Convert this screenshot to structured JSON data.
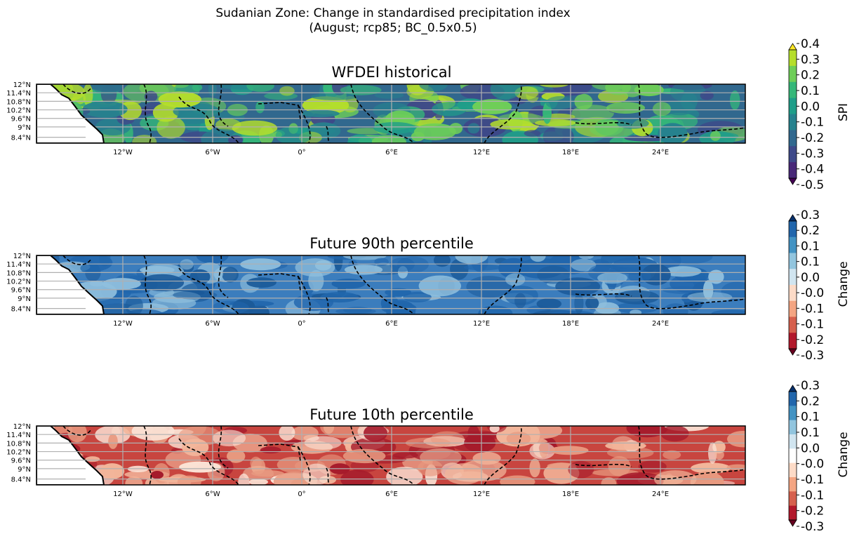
{
  "figure": {
    "title_line1": "Sudanian Zone: Change in standardised precipitation index",
    "title_line2": "(August; rcp85; BC_0.5x0.5)"
  },
  "lat_ticks": [
    "12°N",
    "11.4°N",
    "10.8°N",
    "10.2°N",
    "9.6°N",
    "9°N",
    "8.4°N"
  ],
  "lon_ticks": [
    "12°W",
    "6°W",
    "0°",
    "6°E",
    "12°E",
    "18°E",
    "24°E"
  ],
  "panels": [
    {
      "title": "WFDEI historical",
      "colorbar": {
        "label": "SPI",
        "ticks": [
          "0.4",
          "0.3",
          "0.2",
          "0.1",
          "0.0",
          "-0.1",
          "-0.2",
          "-0.3",
          "-0.4",
          "-0.5"
        ],
        "colors": [
          "#fde725",
          "#b5de2b",
          "#6ece58",
          "#35b779",
          "#1f9e89",
          "#26828e",
          "#31688e",
          "#3e4989",
          "#482878",
          "#440154"
        ]
      },
      "field_colors": [
        "#31688e",
        "#26828e",
        "#1f9e89",
        "#35b779",
        "#3e4989",
        "#6ece58",
        "#b5de2b"
      ]
    },
    {
      "title": "Future 90th percentile",
      "colorbar": {
        "label": "Change",
        "ticks": [
          "0.3",
          "0.2",
          "0.1",
          "0.1",
          "0.0",
          "-0.0",
          "-0.1",
          "-0.1",
          "-0.2",
          "-0.3"
        ],
        "colors": [
          "#08306b",
          "#2166ac",
          "#4393c3",
          "#92c5de",
          "#d1e5f0",
          "#fddbc7",
          "#f4a582",
          "#d6604d",
          "#b2182b",
          "#67001f"
        ]
      },
      "field_colors": [
        "#3b7dbd",
        "#1b5a99",
        "#8fbfdd",
        "#2166ac"
      ]
    },
    {
      "title": "Future 10th percentile",
      "colorbar": {
        "label": "Change",
        "ticks": [
          "0.3",
          "0.2",
          "0.1",
          "0.1",
          "0.0",
          "-0.0",
          "-0.1",
          "-0.1",
          "-0.2",
          "-0.3"
        ],
        "colors": [
          "#08306b",
          "#2166ac",
          "#4393c3",
          "#92c5de",
          "#d1e5f0",
          "#ffffff",
          "#fddbc7",
          "#f4a582",
          "#d6604d",
          "#b2182b",
          "#67001f"
        ]
      },
      "field_colors": [
        "#c8453f",
        "#a51b2b",
        "#e89a80",
        "#f2b59a",
        "#fbe3d6"
      ]
    }
  ]
}
